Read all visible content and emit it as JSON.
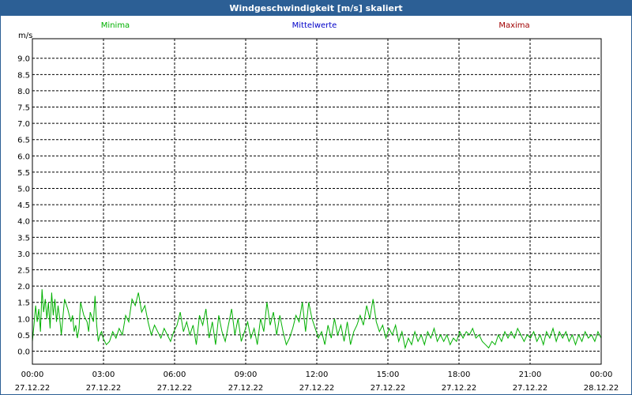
{
  "window": {
    "title": "Windgeschwindigkeit [m/s] skaliert"
  },
  "colors": {
    "titlebar": "#2c5f95",
    "min": "#00b000",
    "mean": "#0000c8",
    "max": "#a00000",
    "grid": "#000000"
  },
  "chart_data": {
    "type": "line",
    "title": "Windgeschwindigkeit [m/s] skaliert",
    "ylabel": "m/s",
    "ylim": [
      -0.4,
      9.6
    ],
    "y_ticks": [
      "0.0",
      "0.5",
      "1.0",
      "1.5",
      "2.0",
      "2.5",
      "3.0",
      "3.5",
      "4.0",
      "4.5",
      "5.0",
      "5.5",
      "6.0",
      "6.5",
      "7.0",
      "7.5",
      "8.0",
      "8.5",
      "9.0"
    ],
    "x_ticks": [
      {
        "time": "00:00",
        "date": "27.12.22"
      },
      {
        "time": "03:00",
        "date": "27.12.22"
      },
      {
        "time": "06:00",
        "date": "27.12.22"
      },
      {
        "time": "09:00",
        "date": "27.12.22"
      },
      {
        "time": "12:00",
        "date": "27.12.22"
      },
      {
        "time": "15:00",
        "date": "27.12.22"
      },
      {
        "time": "18:00",
        "date": "27.12.22"
      },
      {
        "time": "21:00",
        "date": "27.12.22"
      },
      {
        "time": "00:00",
        "date": "28.12.22"
      }
    ],
    "x_range_hours": [
      0,
      24
    ],
    "grid": true,
    "legend_position": "top",
    "series": [
      {
        "name": "Minima",
        "color": "#00b000",
        "points": [
          [
            0.0,
            0.3
          ],
          [
            0.5,
            0.8
          ],
          [
            1.0,
            1.4
          ],
          [
            1.5,
            0.9
          ],
          [
            2.0,
            1.3
          ],
          [
            2.5,
            0.6
          ],
          [
            3.0,
            1.9
          ],
          [
            3.5,
            1.2
          ],
          [
            4.0,
            1.6
          ],
          [
            4.5,
            1.0
          ],
          [
            5.0,
            1.5
          ],
          [
            5.5,
            0.7
          ],
          [
            6.0,
            1.8
          ],
          [
            6.5,
            1.1
          ],
          [
            7.0,
            1.6
          ],
          [
            7.5,
            0.9
          ],
          [
            8.0,
            1.4
          ],
          [
            8.5,
            1.0
          ],
          [
            9.0,
            0.5
          ],
          [
            10.0,
            1.6
          ],
          [
            11.0,
            1.3
          ],
          [
            12.0,
            0.9
          ],
          [
            12.5,
            1.1
          ],
          [
            13.0,
            0.6
          ],
          [
            13.5,
            0.8
          ],
          [
            14.0,
            0.4
          ],
          [
            14.5,
            0.7
          ],
          [
            15.0,
            1.5
          ],
          [
            16.0,
            1.1
          ],
          [
            17.0,
            0.9
          ],
          [
            17.5,
            0.6
          ],
          [
            18.0,
            1.2
          ],
          [
            19.0,
            0.9
          ],
          [
            19.5,
            1.7
          ],
          [
            20.0,
            0.8
          ],
          [
            20.5,
            0.3
          ],
          [
            21.0,
            0.5
          ],
          [
            21.5,
            0.6
          ],
          [
            22.0,
            0.4
          ],
          [
            23.0,
            0.2
          ],
          [
            24.0,
            0.3
          ],
          [
            25.0,
            0.6
          ],
          [
            26.0,
            0.4
          ],
          [
            27.0,
            0.7
          ],
          [
            28.0,
            0.5
          ],
          [
            29.0,
            1.1
          ],
          [
            30.0,
            0.9
          ],
          [
            31.0,
            1.6
          ],
          [
            32.0,
            1.4
          ],
          [
            33.0,
            1.8
          ],
          [
            34.0,
            1.2
          ],
          [
            35.0,
            1.4
          ],
          [
            36.0,
            0.9
          ],
          [
            37.0,
            0.5
          ],
          [
            38.0,
            0.8
          ],
          [
            39.0,
            0.6
          ],
          [
            40.0,
            0.4
          ],
          [
            41.0,
            0.7
          ],
          [
            42.0,
            0.5
          ],
          [
            43.0,
            0.3
          ],
          [
            44.0,
            0.6
          ],
          [
            45.0,
            0.8
          ],
          [
            46.0,
            1.2
          ],
          [
            47.0,
            0.6
          ],
          [
            48.0,
            0.9
          ],
          [
            49.0,
            0.5
          ],
          [
            50.0,
            0.8
          ],
          [
            51.0,
            0.2
          ],
          [
            52.0,
            1.1
          ],
          [
            53.0,
            0.8
          ],
          [
            54.0,
            1.3
          ],
          [
            55.0,
            0.4
          ],
          [
            56.0,
            0.9
          ],
          [
            57.0,
            0.2
          ],
          [
            58.0,
            1.1
          ],
          [
            59.0,
            0.6
          ],
          [
            60.0,
            0.3
          ],
          [
            61.0,
            0.8
          ],
          [
            62.0,
            1.3
          ],
          [
            63.0,
            0.5
          ],
          [
            64.0,
            1.0
          ],
          [
            65.0,
            0.3
          ],
          [
            66.0,
            0.6
          ],
          [
            67.0,
            0.9
          ],
          [
            68.0,
            0.4
          ],
          [
            69.0,
            0.7
          ],
          [
            70.0,
            0.2
          ],
          [
            71.0,
            1.0
          ],
          [
            72.0,
            0.6
          ],
          [
            73.0,
            1.5
          ],
          [
            74.0,
            0.8
          ],
          [
            75.0,
            1.2
          ],
          [
            76.0,
            0.5
          ],
          [
            77.0,
            1.1
          ],
          [
            78.0,
            0.6
          ],
          [
            79.0,
            0.2
          ],
          [
            80.0,
            0.4
          ],
          [
            81.0,
            0.7
          ],
          [
            82.0,
            1.1
          ],
          [
            83.0,
            0.9
          ],
          [
            84.0,
            1.5
          ],
          [
            85.0,
            0.6
          ],
          [
            86.0,
            1.5
          ],
          [
            87.0,
            1.0
          ],
          [
            88.0,
            0.7
          ],
          [
            89.0,
            0.4
          ],
          [
            90.0,
            0.6
          ],
          [
            91.0,
            0.2
          ],
          [
            92.0,
            0.8
          ],
          [
            93.0,
            0.4
          ],
          [
            94.0,
            1.0
          ],
          [
            95.0,
            0.5
          ],
          [
            96.0,
            0.8
          ],
          [
            97.0,
            0.3
          ],
          [
            98.0,
            0.9
          ],
          [
            99.0,
            0.2
          ],
          [
            100.0,
            0.6
          ],
          [
            101.0,
            0.8
          ],
          [
            102.0,
            1.1
          ],
          [
            103.0,
            0.8
          ],
          [
            104.0,
            1.4
          ],
          [
            105.0,
            1.0
          ],
          [
            106.0,
            1.6
          ],
          [
            107.0,
            0.9
          ],
          [
            108.0,
            0.6
          ],
          [
            109.0,
            0.8
          ],
          [
            110.0,
            0.4
          ],
          [
            111.0,
            0.7
          ],
          [
            112.0,
            0.5
          ],
          [
            113.0,
            0.8
          ],
          [
            114.0,
            0.3
          ],
          [
            115.0,
            0.6
          ],
          [
            116.0,
            0.1
          ],
          [
            117.0,
            0.4
          ],
          [
            118.0,
            0.2
          ],
          [
            119.0,
            0.6
          ],
          [
            120.0,
            0.3
          ],
          [
            121.0,
            0.5
          ],
          [
            122.0,
            0.2
          ],
          [
            123.0,
            0.6
          ],
          [
            124.0,
            0.4
          ],
          [
            125.0,
            0.7
          ],
          [
            126.0,
            0.3
          ],
          [
            127.0,
            0.5
          ],
          [
            128.0,
            0.3
          ],
          [
            129.0,
            0.5
          ],
          [
            130.0,
            0.2
          ],
          [
            131.0,
            0.4
          ],
          [
            132.0,
            0.3
          ],
          [
            133.0,
            0.6
          ],
          [
            134.0,
            0.4
          ],
          [
            135.0,
            0.6
          ],
          [
            136.0,
            0.5
          ],
          [
            137.0,
            0.7
          ],
          [
            138.0,
            0.4
          ],
          [
            139.0,
            0.5
          ],
          [
            140.0,
            0.3
          ],
          [
            141.0,
            0.2
          ],
          [
            142.0,
            0.1
          ],
          [
            143.0,
            0.3
          ],
          [
            144.0,
            0.2
          ],
          [
            145.0,
            0.5
          ],
          [
            146.0,
            0.3
          ],
          [
            147.0,
            0.6
          ],
          [
            148.0,
            0.4
          ],
          [
            149.0,
            0.6
          ],
          [
            150.0,
            0.4
          ],
          [
            151.0,
            0.7
          ],
          [
            152.0,
            0.5
          ],
          [
            153.0,
            0.3
          ],
          [
            154.0,
            0.5
          ],
          [
            155.0,
            0.4
          ],
          [
            156.0,
            0.6
          ],
          [
            157.0,
            0.3
          ],
          [
            158.0,
            0.5
          ],
          [
            159.0,
            0.2
          ],
          [
            160.0,
            0.6
          ],
          [
            161.0,
            0.4
          ],
          [
            162.0,
            0.7
          ],
          [
            163.0,
            0.3
          ],
          [
            164.0,
            0.6
          ],
          [
            165.0,
            0.4
          ],
          [
            166.0,
            0.6
          ],
          [
            167.0,
            0.3
          ],
          [
            168.0,
            0.5
          ],
          [
            169.0,
            0.2
          ],
          [
            170.0,
            0.5
          ],
          [
            171.0,
            0.3
          ],
          [
            172.0,
            0.6
          ],
          [
            173.0,
            0.4
          ],
          [
            174.0,
            0.5
          ],
          [
            175.0,
            0.3
          ],
          [
            176.0,
            0.6
          ],
          [
            177.0,
            0.4
          ]
        ]
      },
      {
        "name": "Mittelwerte",
        "color": "#0000c8",
        "points": []
      },
      {
        "name": "Maxima",
        "color": "#a00000",
        "points": []
      }
    ]
  }
}
